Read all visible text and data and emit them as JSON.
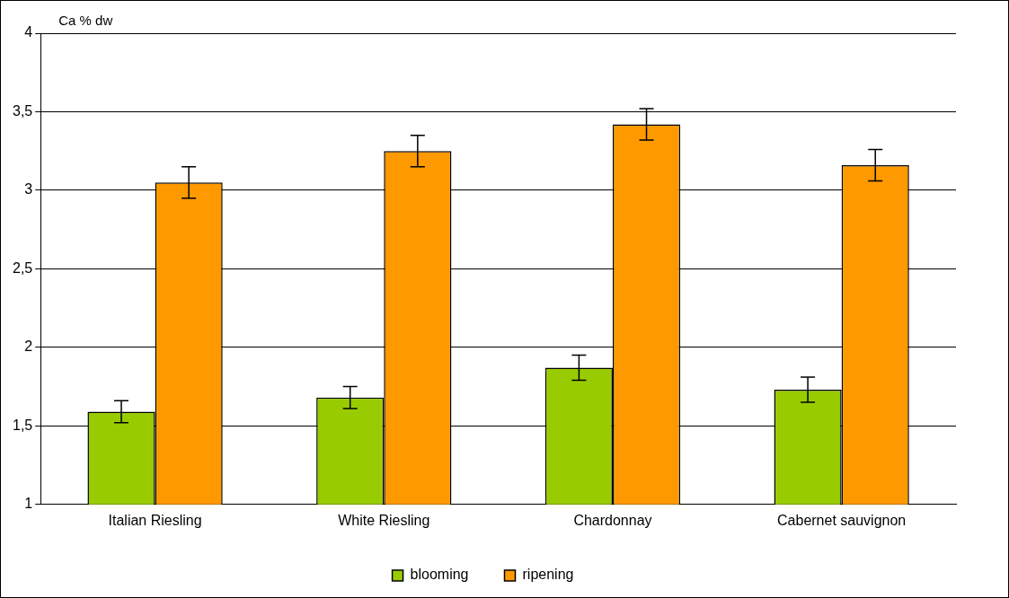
{
  "chart_data": {
    "type": "bar",
    "ylabel": "Ca % dw",
    "categories": [
      "Italian Riesling",
      "White Riesling",
      "Chardonnay",
      "Cabernet sauvignon"
    ],
    "series": [
      {
        "name": "blooming",
        "color": "#99cc00",
        "values": [
          1.59,
          1.68,
          1.87,
          1.73
        ],
        "errors": [
          0.07,
          0.07,
          0.08,
          0.08
        ]
      },
      {
        "name": "ripening",
        "color": "#ff9900",
        "values": [
          3.05,
          3.25,
          3.42,
          3.16
        ],
        "errors": [
          0.1,
          0.1,
          0.1,
          0.1
        ]
      }
    ],
    "ylim": [
      1,
      4
    ],
    "yticks": [
      1,
      {
        "value": 1.5,
        "label": "1,5"
      },
      2,
      {
        "value": 2.5,
        "label": "2,5"
      },
      3,
      {
        "value": 3.5,
        "label": "3,5"
      },
      4
    ],
    "grid": "y",
    "legend": "bottom"
  }
}
